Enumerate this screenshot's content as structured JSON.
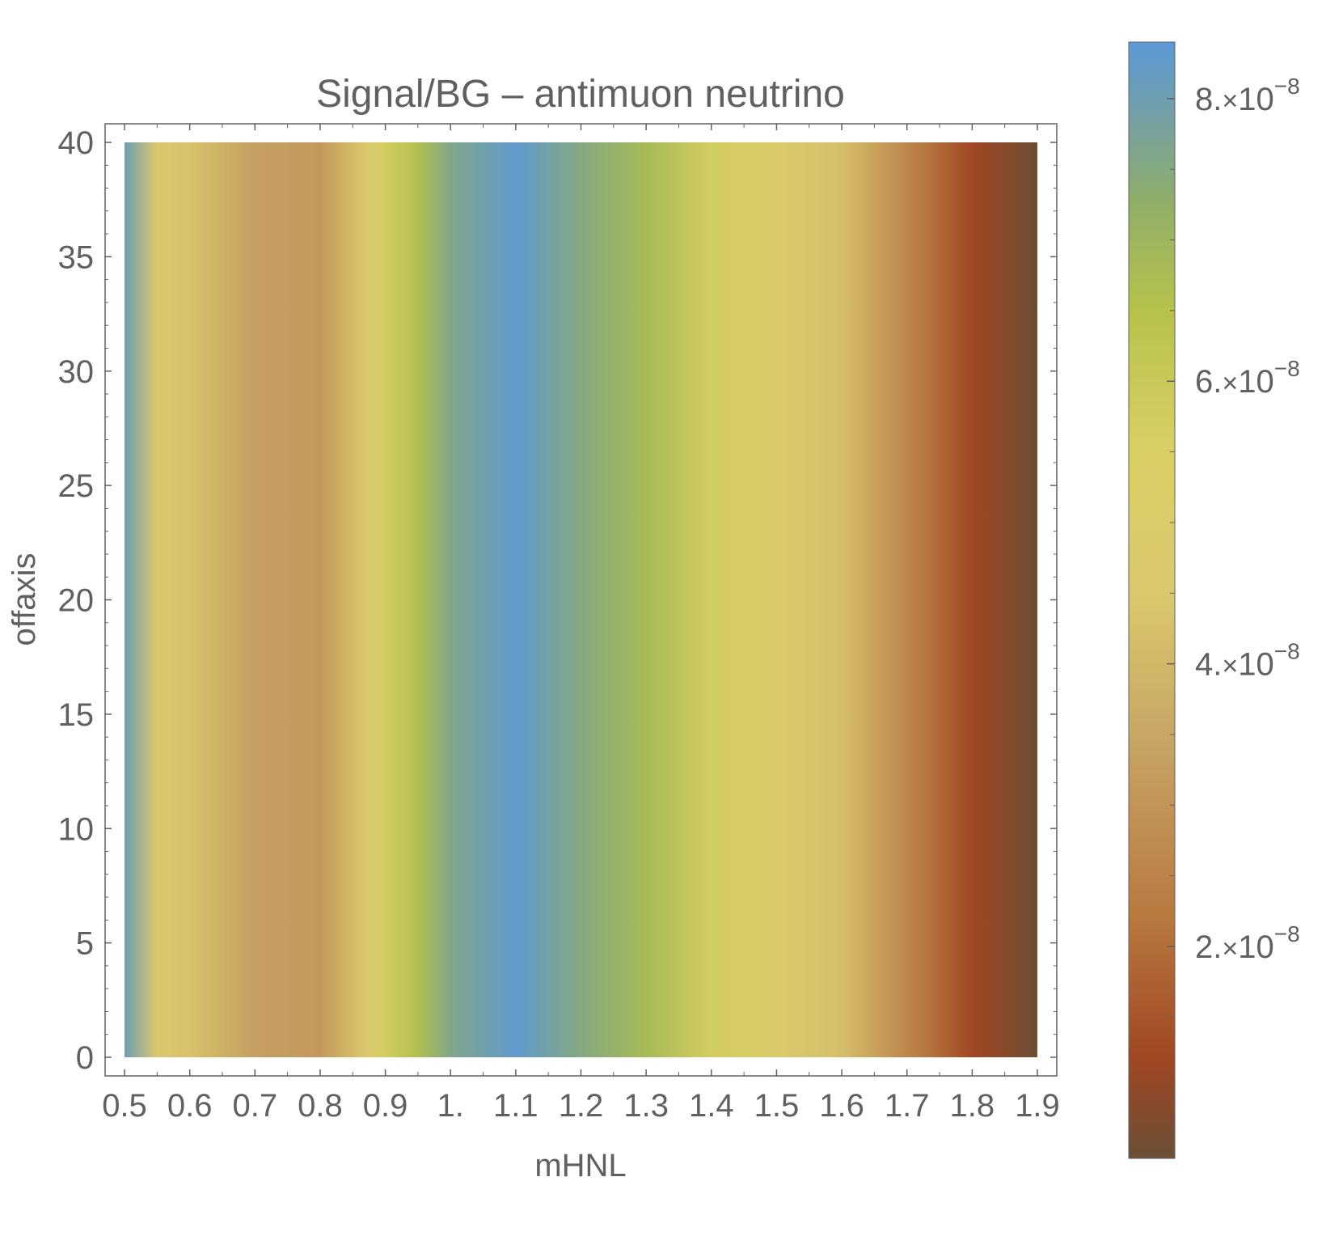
{
  "chart_data": {
    "type": "heatmap",
    "title": "Signal/BG – antimuon neutrino",
    "xlabel": "mHNL",
    "ylabel": "offaxis",
    "xlim": [
      0.5,
      1.9
    ],
    "ylim": [
      0,
      40
    ],
    "x_ticks": [
      {
        "value": 0.5,
        "label": "0.5"
      },
      {
        "value": 0.6,
        "label": "0.6"
      },
      {
        "value": 0.7,
        "label": "0.7"
      },
      {
        "value": 0.8,
        "label": "0.8"
      },
      {
        "value": 0.9,
        "label": "0.9"
      },
      {
        "value": 1.0,
        "label": "1."
      },
      {
        "value": 1.1,
        "label": "1.1"
      },
      {
        "value": 1.2,
        "label": "1.2"
      },
      {
        "value": 1.3,
        "label": "1.3"
      },
      {
        "value": 1.4,
        "label": "1.4"
      },
      {
        "value": 1.5,
        "label": "1.5"
      },
      {
        "value": 1.6,
        "label": "1.6"
      },
      {
        "value": 1.7,
        "label": "1.7"
      },
      {
        "value": 1.8,
        "label": "1.8"
      },
      {
        "value": 1.9,
        "label": "1.9"
      }
    ],
    "y_ticks": [
      {
        "value": 0,
        "label": "0"
      },
      {
        "value": 5,
        "label": "5"
      },
      {
        "value": 10,
        "label": "10"
      },
      {
        "value": 15,
        "label": "15"
      },
      {
        "value": 20,
        "label": "20"
      },
      {
        "value": 25,
        "label": "25"
      },
      {
        "value": 30,
        "label": "30"
      },
      {
        "value": 35,
        "label": "35"
      },
      {
        "value": 40,
        "label": "40"
      }
    ],
    "profile_x": [
      0.5,
      0.55,
      0.6,
      0.7,
      0.8,
      0.87,
      0.9,
      0.95,
      1.0,
      1.1,
      1.2,
      1.3,
      1.4,
      1.5,
      1.6,
      1.7,
      1.75,
      1.8,
      1.85,
      1.9
    ],
    "profile_values": [
      8e-08,
      4.5e-08,
      4.3e-08,
      3.3e-08,
      3.1e-08,
      4.5e-08,
      5.7e-08,
      6.6e-08,
      7.6e-08,
      8.3e-08,
      7.5e-08,
      6.8e-08,
      5.7e-08,
      4.9e-08,
      4.2e-08,
      2.6e-08,
      1.9e-08,
      1.2e-08,
      9e-09,
      5e-09
    ],
    "colorbar": {
      "range": [
        5e-09,
        8.4e-08
      ],
      "stops": [
        {
          "value": 5e-09,
          "color": "#6b4f36"
        },
        {
          "value": 1.2e-08,
          "color": "#a04723"
        },
        {
          "value": 2.2e-08,
          "color": "#b8783e"
        },
        {
          "value": 3.4e-08,
          "color": "#c6a364"
        },
        {
          "value": 4.5e-08,
          "color": "#dbc86d"
        },
        {
          "value": 5.5e-08,
          "color": "#d9d065"
        },
        {
          "value": 6.5e-08,
          "color": "#b6c24a"
        },
        {
          "value": 7.3e-08,
          "color": "#8fad6a"
        },
        {
          "value": 7.9e-08,
          "color": "#729fa8"
        },
        {
          "value": 8.4e-08,
          "color": "#5b99d7"
        }
      ],
      "ticks": [
        {
          "value": 2e-08,
          "mantissa": "2.",
          "times": "×",
          "base": "10",
          "exponent": "−8"
        },
        {
          "value": 4e-08,
          "mantissa": "4.",
          "times": "×",
          "base": "10",
          "exponent": "−8"
        },
        {
          "value": 6e-08,
          "mantissa": "6.",
          "times": "×",
          "base": "10",
          "exponent": "−8"
        },
        {
          "value": 8e-08,
          "mantissa": "8.",
          "times": "×",
          "base": "10",
          "exponent": "−8"
        }
      ],
      "minor_step": 5e-09
    },
    "colors": {
      "axis": "#606060",
      "text": "#606060",
      "frame": "#606060"
    }
  }
}
